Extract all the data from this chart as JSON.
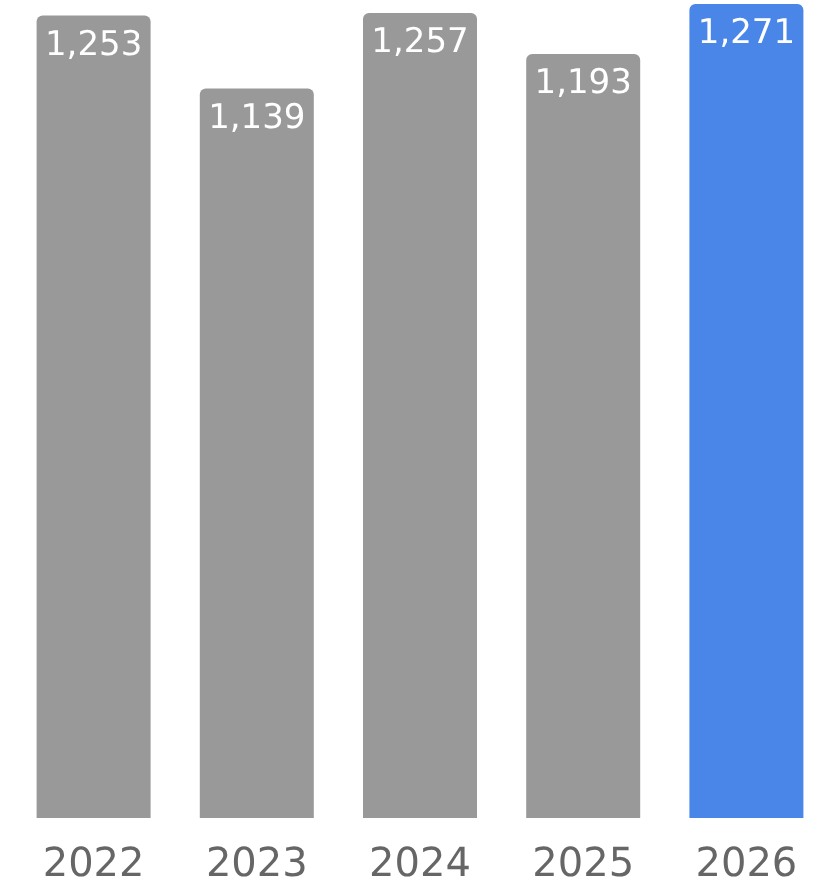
{
  "chart_data": {
    "type": "bar",
    "categories": [
      "2022",
      "2023",
      "2024",
      "2025",
      "2026"
    ],
    "values": [
      1253,
      1139,
      1257,
      1193,
      1271
    ],
    "value_labels": [
      "1,253",
      "1,139",
      "1,257",
      "1,193",
      "1,271"
    ],
    "colors": [
      "#999999",
      "#999999",
      "#999999",
      "#999999",
      "#4a86e8"
    ]
  }
}
